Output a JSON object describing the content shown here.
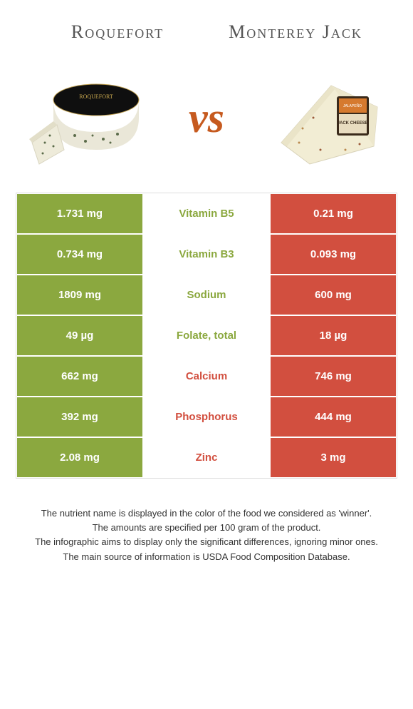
{
  "header": {
    "left_title": "Roquefort",
    "right_title": "Monterey Jack",
    "vs": "vs"
  },
  "colors": {
    "left_bg": "#8ba83f",
    "right_bg": "#d24f3f",
    "left_text": "#8ba83f",
    "right_text": "#d24f3f",
    "white": "#ffffff"
  },
  "rows": [
    {
      "left": "1.731 mg",
      "mid": "Vitamin B5",
      "right": "0.21 mg",
      "winner": "left"
    },
    {
      "left": "0.734 mg",
      "mid": "Vitamin B3",
      "right": "0.093 mg",
      "winner": "left"
    },
    {
      "left": "1809 mg",
      "mid": "Sodium",
      "right": "600 mg",
      "winner": "left"
    },
    {
      "left": "49 µg",
      "mid": "Folate, total",
      "right": "18 µg",
      "winner": "left"
    },
    {
      "left": "662 mg",
      "mid": "Calcium",
      "right": "746 mg",
      "winner": "right"
    },
    {
      "left": "392 mg",
      "mid": "Phosphorus",
      "right": "444 mg",
      "winner": "right"
    },
    {
      "left": "2.08 mg",
      "mid": "Zinc",
      "right": "3 mg",
      "winner": "right"
    }
  ],
  "footer": {
    "line1": "The nutrient name is displayed in the color of the food we considered as 'winner'.",
    "line2": "The amounts are specified per 100 gram of the product.",
    "line3": "The infographic aims to display only the significant differences, ignoring minor ones.",
    "line4": "The main source of information is USDA Food Composition Database."
  }
}
